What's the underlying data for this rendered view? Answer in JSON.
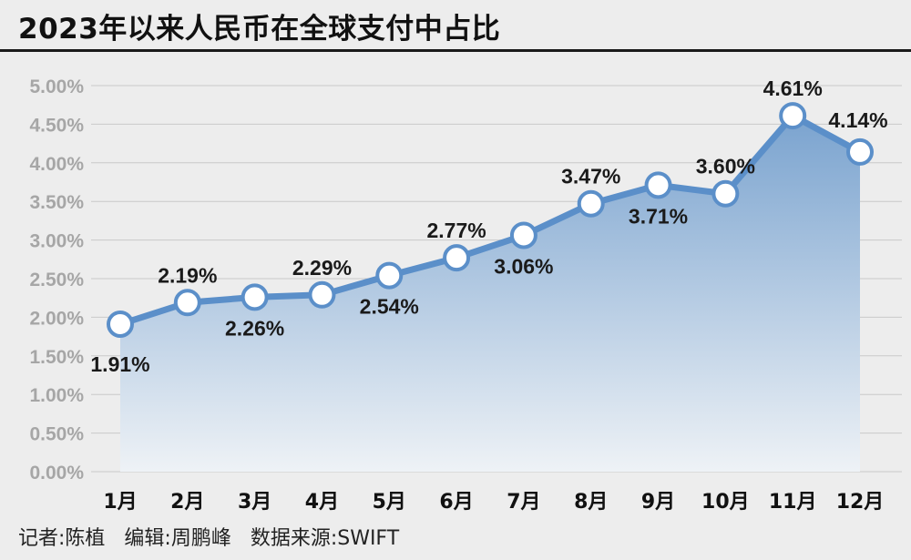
{
  "title": "2023年以来人民币在全球支付中占比",
  "footer": {
    "reporter": "记者:陈植",
    "editor": "编辑:周鹏峰",
    "source": "数据来源:SWIFT"
  },
  "colors": {
    "line": "#5b8fc9",
    "marker_fill": "#ffffff",
    "area_top": "#7aa3cf",
    "area_bottom": "#eef2f6",
    "grid": "#c9c9c9",
    "ytick": "#a6a6a6",
    "label": "#1a1a1a"
  },
  "chart_data": {
    "type": "area",
    "title": "2023年以来人民币在全球支付中占比",
    "categories": [
      "1月",
      "2月",
      "3月",
      "4月",
      "5月",
      "6月",
      "7月",
      "8月",
      "9月",
      "10月",
      "11月",
      "12月"
    ],
    "series": [
      {
        "values": [
          1.91,
          2.19,
          2.26,
          2.29,
          2.54,
          2.77,
          3.06,
          3.47,
          3.71,
          3.6,
          4.61,
          4.14
        ],
        "labels": [
          "1.91%",
          "2.19%",
          "2.26%",
          "2.29%",
          "2.54%",
          "2.77%",
          "3.06%",
          "3.47%",
          "3.71%",
          "3.60%",
          "4.61%",
          "4.14%"
        ],
        "label_side": [
          "below",
          "above",
          "below",
          "above",
          "below",
          "above",
          "below",
          "above",
          "below",
          "above",
          "above",
          "above"
        ]
      }
    ],
    "yticks": [
      "0.00%",
      "0.50%",
      "1.00%",
      "1.50%",
      "2.00%",
      "2.50%",
      "3.00%",
      "3.50%",
      "4.00%",
      "4.50%",
      "5.00%"
    ],
    "ytick_values": [
      0,
      0.5,
      1.0,
      1.5,
      2.0,
      2.5,
      3.0,
      3.5,
      4.0,
      4.5,
      5.0
    ],
    "ylim": [
      0,
      5
    ],
    "grid": true,
    "legend": "none"
  }
}
